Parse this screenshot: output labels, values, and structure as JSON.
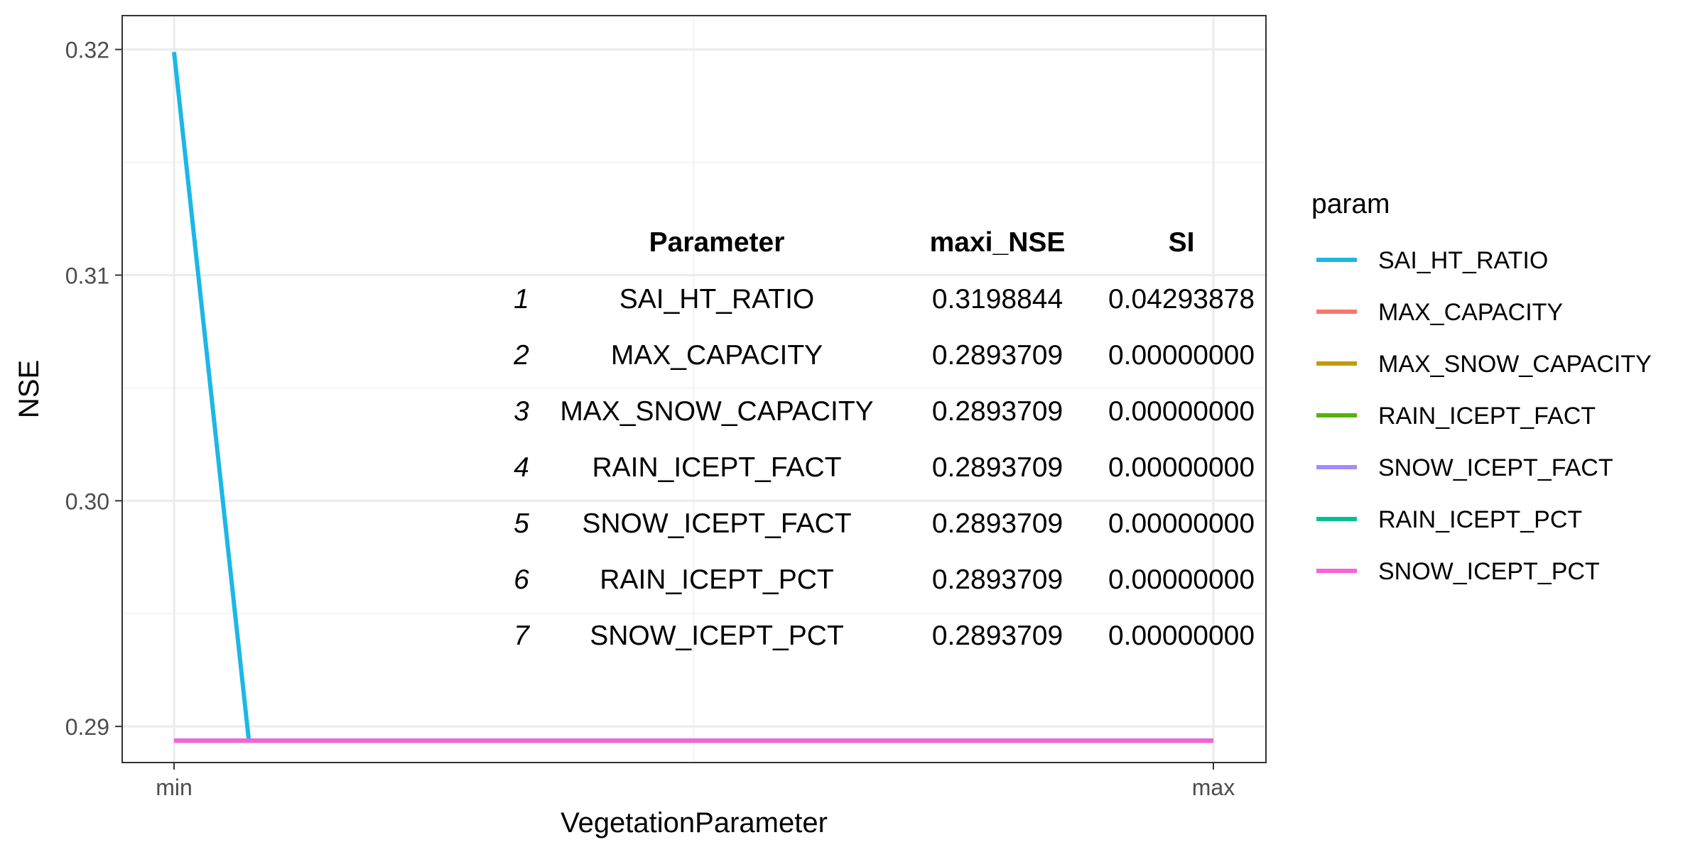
{
  "chart_data": {
    "type": "line",
    "xlabel": "VegetationParameter",
    "ylabel": "NSE",
    "x_categories": [
      "min",
      "max"
    ],
    "xlim": [
      0,
      1
    ],
    "ylim": [
      0.2884,
      0.3215
    ],
    "y_ticks": [
      0.29,
      0.3,
      0.31,
      0.32
    ],
    "y_tick_labels": [
      "0.29",
      "0.30",
      "0.31",
      "0.32"
    ],
    "grid": true,
    "legend_title": "param",
    "legend_position": "right",
    "series": [
      {
        "name": "SAI_HT_RATIO",
        "color": "#1bb7e6",
        "x": [
          0,
          0.072,
          1
        ],
        "y": [
          0.3198844,
          0.2893709,
          0.2893709
        ]
      },
      {
        "name": "MAX_CAPACITY",
        "color": "#f8766d",
        "x": [
          0,
          1
        ],
        "y": [
          0.2893709,
          0.2893709
        ]
      },
      {
        "name": "MAX_SNOW_CAPACITY",
        "color": "#c49a00",
        "x": [
          0,
          1
        ],
        "y": [
          0.2893709,
          0.2893709
        ]
      },
      {
        "name": "RAIN_ICEPT_FACT",
        "color": "#53b400",
        "x": [
          0,
          1
        ],
        "y": [
          0.2893709,
          0.2893709
        ]
      },
      {
        "name": "SNOW_ICEPT_FACT",
        "color": "#a58aff",
        "x": [
          0,
          1
        ],
        "y": [
          0.2893709,
          0.2893709
        ]
      },
      {
        "name": "RAIN_ICEPT_PCT",
        "color": "#00c094",
        "x": [
          0,
          1
        ],
        "y": [
          0.2893709,
          0.2893709
        ]
      },
      {
        "name": "SNOW_ICEPT_PCT",
        "color": "#fb61d7",
        "x": [
          0,
          1
        ],
        "y": [
          0.2893709,
          0.2893709
        ]
      }
    ],
    "table": {
      "headers": [
        "Parameter",
        "maxi_NSE",
        "SI"
      ],
      "rows": [
        {
          "index": "1",
          "parameter": "SAI_HT_RATIO",
          "maxi_nse": "0.3198844",
          "si": "0.04293878"
        },
        {
          "index": "2",
          "parameter": "MAX_CAPACITY",
          "maxi_nse": "0.2893709",
          "si": "0.00000000"
        },
        {
          "index": "3",
          "parameter": "MAX_SNOW_CAPACITY",
          "maxi_nse": "0.2893709",
          "si": "0.00000000"
        },
        {
          "index": "4",
          "parameter": "RAIN_ICEPT_FACT",
          "maxi_nse": "0.2893709",
          "si": "0.00000000"
        },
        {
          "index": "5",
          "parameter": "SNOW_ICEPT_FACT",
          "maxi_nse": "0.2893709",
          "si": "0.00000000"
        },
        {
          "index": "6",
          "parameter": "RAIN_ICEPT_PCT",
          "maxi_nse": "0.2893709",
          "si": "0.00000000"
        },
        {
          "index": "7",
          "parameter": "SNOW_ICEPT_PCT",
          "maxi_nse": "0.2893709",
          "si": "0.00000000"
        }
      ]
    }
  }
}
